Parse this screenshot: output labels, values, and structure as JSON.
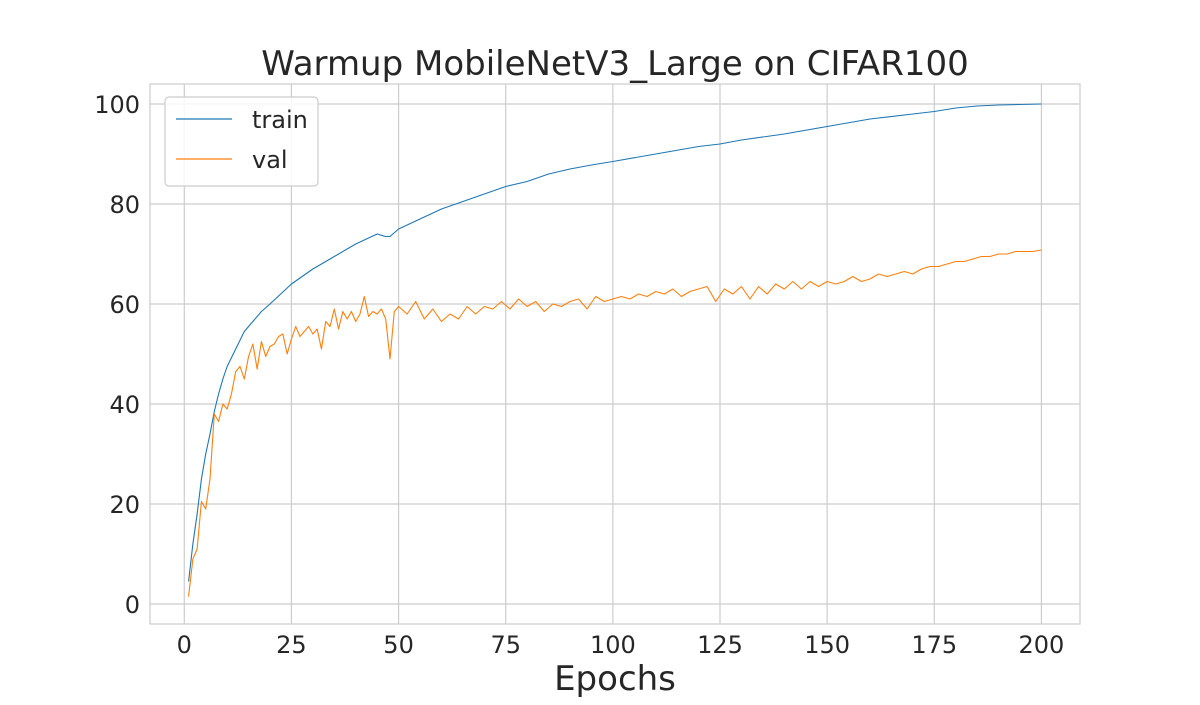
{
  "chart_data": {
    "type": "line",
    "title": "Warmup MobileNetV3_Large on CIFAR100",
    "xlabel": "Epochs",
    "ylabel": "",
    "xlim": [
      -8,
      209
    ],
    "ylim": [
      -4,
      104
    ],
    "xticks": [
      0,
      25,
      50,
      75,
      100,
      125,
      150,
      175,
      200
    ],
    "yticks": [
      0,
      20,
      40,
      60,
      80,
      100
    ],
    "grid": true,
    "legend_position": "upper-left",
    "series": [
      {
        "name": "train",
        "color": "#1f77b4",
        "x": [
          1,
          2,
          3,
          4,
          5,
          6,
          7,
          8,
          9,
          10,
          12,
          14,
          16,
          18,
          20,
          25,
          30,
          35,
          40,
          45,
          47,
          48,
          50,
          55,
          60,
          65,
          70,
          75,
          80,
          85,
          90,
          95,
          100,
          110,
          120,
          125,
          130,
          140,
          150,
          160,
          170,
          175,
          180,
          185,
          190,
          195,
          200
        ],
        "y": [
          4.5,
          12,
          18,
          25,
          30,
          34,
          38.5,
          42,
          45,
          47.5,
          51,
          54.5,
          56.5,
          58.5,
          60,
          64,
          67,
          69.5,
          72,
          74,
          73.5,
          73.5,
          75,
          77,
          79,
          80.5,
          82,
          83.5,
          84.5,
          86,
          87,
          87.8,
          88.5,
          90,
          91.5,
          92,
          92.8,
          94,
          95.5,
          97,
          98,
          98.5,
          99.2,
          99.6,
          99.8,
          99.9,
          100
        ]
      },
      {
        "name": "val",
        "color": "#ff7f0e",
        "x": [
          1,
          2,
          3,
          4,
          5,
          6,
          7,
          8,
          9,
          10,
          11,
          12,
          13,
          14,
          15,
          16,
          17,
          18,
          19,
          20,
          21,
          22,
          23,
          24,
          25,
          26,
          27,
          28,
          29,
          30,
          31,
          32,
          33,
          34,
          35,
          36,
          37,
          38,
          39,
          40,
          41,
          42,
          43,
          44,
          45,
          46,
          47,
          48,
          49,
          50,
          52,
          54,
          56,
          58,
          60,
          62,
          64,
          66,
          68,
          70,
          72,
          74,
          76,
          78,
          80,
          82,
          84,
          86,
          88,
          90,
          92,
          94,
          96,
          98,
          100,
          102,
          104,
          106,
          108,
          110,
          112,
          114,
          116,
          118,
          120,
          122,
          124,
          126,
          128,
          130,
          132,
          134,
          136,
          138,
          140,
          142,
          144,
          146,
          148,
          150,
          152,
          154,
          156,
          158,
          160,
          162,
          164,
          166,
          168,
          170,
          172,
          174,
          176,
          178,
          180,
          182,
          184,
          186,
          188,
          190,
          192,
          194,
          196,
          198,
          200
        ],
        "y": [
          1.5,
          9,
          11,
          20.5,
          19,
          25,
          38,
          36.5,
          40,
          39,
          42,
          46.5,
          47.5,
          45,
          49.5,
          52,
          47,
          52.5,
          49.5,
          51.5,
          52,
          53.5,
          54,
          50,
          53,
          55.5,
          53.5,
          54.5,
          55.5,
          54,
          55,
          51,
          56.5,
          55.5,
          59,
          55,
          58.5,
          57,
          58.5,
          56.5,
          58,
          61.5,
          57.5,
          58.5,
          58,
          59,
          57,
          49,
          58.5,
          59.5,
          58,
          60.5,
          57,
          59,
          56.5,
          58,
          57,
          59.5,
          58,
          59.5,
          59,
          60.5,
          59,
          61,
          59.5,
          60.5,
          58.5,
          60,
          59.5,
          60.5,
          61,
          59,
          61.5,
          60.5,
          61,
          61.5,
          61,
          62,
          61.5,
          62.5,
          62,
          63,
          61.5,
          62.5,
          63,
          63.5,
          60.5,
          63,
          62,
          63.5,
          61,
          63.5,
          62,
          64,
          63,
          64.5,
          63,
          64.5,
          63.5,
          64.5,
          64,
          64.5,
          65.5,
          64.5,
          65,
          66,
          65.5,
          66,
          66.5,
          66,
          67,
          67.5,
          67.5,
          68,
          68.5,
          68.5,
          69,
          69.5,
          69.5,
          70,
          70,
          70.5,
          70.5,
          70.5,
          70.8
        ]
      }
    ]
  }
}
